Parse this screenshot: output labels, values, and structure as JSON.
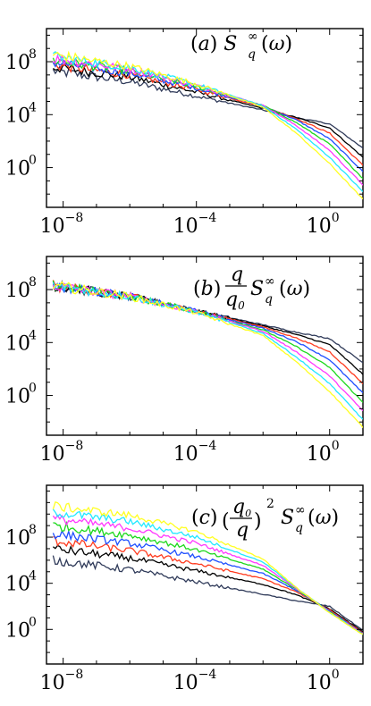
{
  "chart_data": [
    {
      "type": "line",
      "panel_label": "(a)",
      "log_x": true,
      "log_y": true,
      "xlim": [
        3.16e-09,
        10
      ],
      "ylim": [
        0.001,
        31600000000.0
      ],
      "grid": false,
      "x_tick_labels": [
        {
          "base": "10",
          "exp": "−8",
          "value": 1e-08
        },
        {
          "base": "10",
          "exp": "−4",
          "value": 0.0001
        },
        {
          "base": "10",
          "exp": "0",
          "value": 1
        }
      ],
      "y_tick_labels": [
        {
          "base": "10",
          "exp": "0",
          "value": 1
        },
        {
          "base": "10",
          "exp": "4",
          "value": 10000.0
        },
        {
          "base": "10",
          "exp": "8",
          "value": 100000000.0
        }
      ],
      "series": [
        {
          "color": "#2f3a59",
          "x": [
            5e-09,
            1e-06,
            0.0001,
            0.01,
            0.1,
            1,
            10
          ],
          "y": [
            20000000.0,
            3000000.0,
            250000.0,
            22000.0,
            6000.0,
            2000.0,
            30
          ]
        },
        {
          "color": "#000000",
          "x": [
            5e-09,
            1e-06,
            0.0001,
            0.01,
            0.1,
            1,
            10
          ],
          "y": [
            40000000.0,
            7000000.0,
            500000.0,
            30000.0,
            6000.0,
            1000.0,
            6
          ]
        },
        {
          "color": "#ff3b1f",
          "x": [
            5e-09,
            1e-06,
            0.0001,
            0.01,
            0.1,
            1,
            10
          ],
          "y": [
            60000000.0,
            10000000.0,
            800000.0,
            40000.0,
            5000.0,
            400.0,
            1.5
          ]
        },
        {
          "color": "#1e4fff",
          "x": [
            5e-09,
            1e-06,
            0.0001,
            0.01,
            0.1,
            1,
            10
          ],
          "y": [
            90000000.0,
            14000000.0,
            1000000.0,
            45000.0,
            4000.0,
            150.0,
            0.5
          ]
        },
        {
          "color": "#1ed81e",
          "x": [
            5e-09,
            1e-06,
            0.0001,
            0.01,
            0.1,
            1,
            10
          ],
          "y": [
            130000000.0,
            20000000.0,
            1300000.0,
            50000.0,
            2500.0,
            60,
            0.15
          ]
        },
        {
          "color": "#ff39ff",
          "x": [
            5e-09,
            1e-06,
            0.0001,
            0.01,
            0.1,
            1,
            10
          ],
          "y": [
            180000000.0,
            28000000.0,
            1600000.0,
            50000.0,
            1500.0,
            20,
            0.05
          ]
        },
        {
          "color": "#22e8ff",
          "x": [
            5e-09,
            1e-06,
            0.0001,
            0.01,
            0.1,
            1,
            10
          ],
          "y": [
            250000000.0,
            36000000.0,
            1900000.0,
            45000.0,
            800,
            6,
            0.015
          ]
        },
        {
          "color": "#ffff22",
          "x": [
            5e-09,
            1e-06,
            0.0001,
            0.01,
            0.1,
            1,
            10
          ],
          "y": [
            340000000.0,
            45000000.0,
            2100000.0,
            36000.0,
            400,
            2,
            0.004
          ]
        }
      ]
    },
    {
      "type": "line",
      "panel_label": "(b)",
      "log_x": true,
      "log_y": true,
      "xlim": [
        3.16e-09,
        10
      ],
      "ylim": [
        0.001,
        31600000000.0
      ],
      "grid": false,
      "x_tick_labels": [
        {
          "base": "10",
          "exp": "−8",
          "value": 1e-08
        },
        {
          "base": "10",
          "exp": "−4",
          "value": 0.0001
        },
        {
          "base": "10",
          "exp": "0",
          "value": 1
        }
      ],
      "y_tick_labels": [
        {
          "base": "10",
          "exp": "0",
          "value": 1
        },
        {
          "base": "10",
          "exp": "4",
          "value": 10000.0
        },
        {
          "base": "10",
          "exp": "8",
          "value": 100000000.0
        }
      ],
      "series": [
        {
          "color": "#2f3a59",
          "x": [
            5e-09,
            1e-06,
            0.0001,
            0.01,
            0.1,
            1,
            10
          ],
          "y": [
            200000000.0,
            30000000.0,
            2500000.0,
            220000.0,
            60000.0,
            20000.0,
            300
          ]
        },
        {
          "color": "#000000",
          "x": [
            5e-09,
            1e-06,
            0.0001,
            0.01,
            0.1,
            1,
            10
          ],
          "y": [
            200000000.0,
            30000000.0,
            2500000.0,
            180000.0,
            40000.0,
            7000.0,
            40
          ]
        },
        {
          "color": "#ff3b1f",
          "x": [
            5e-09,
            1e-06,
            0.0001,
            0.01,
            0.1,
            1,
            10
          ],
          "y": [
            200000000.0,
            30000000.0,
            2500000.0,
            150000.0,
            22000.0,
            2000.0,
            8
          ]
        },
        {
          "color": "#1e4fff",
          "x": [
            5e-09,
            1e-06,
            0.0001,
            0.01,
            0.1,
            1,
            10
          ],
          "y": [
            200000000.0,
            30000000.0,
            2400000.0,
            120000.0,
            12000.0,
            500,
            1.5
          ]
        },
        {
          "color": "#1ed81e",
          "x": [
            5e-09,
            1e-06,
            0.0001,
            0.01,
            0.1,
            1,
            10
          ],
          "y": [
            200000000.0,
            30000000.0,
            2300000.0,
            90000.0,
            5000.0,
            130,
            0.3
          ]
        },
        {
          "color": "#ff39ff",
          "x": [
            5e-09,
            1e-06,
            0.0001,
            0.01,
            0.1,
            1,
            10
          ],
          "y": [
            200000000.0,
            30000000.0,
            2200000.0,
            70000.0,
            2000.0,
            30,
            0.07
          ]
        },
        {
          "color": "#22e8ff",
          "x": [
            5e-09,
            1e-06,
            0.0001,
            0.01,
            0.1,
            1,
            10
          ],
          "y": [
            200000000.0,
            30000000.0,
            2000000.0,
            50000.0,
            800,
            8,
            0.015
          ]
        },
        {
          "color": "#ffff22",
          "x": [
            5e-09,
            1e-06,
            0.0001,
            0.01,
            0.1,
            1,
            10
          ],
          "y": [
            200000000.0,
            30000000.0,
            1800000.0,
            34000.0,
            350,
            2,
            0.004
          ]
        }
      ]
    },
    {
      "type": "line",
      "panel_label": "(c)",
      "log_x": true,
      "log_y": true,
      "xlim": [
        3.16e-09,
        10
      ],
      "ylim": [
        0.001,
        3160000000000.0
      ],
      "grid": false,
      "x_tick_labels": [
        {
          "base": "10",
          "exp": "−8",
          "value": 1e-08
        },
        {
          "base": "10",
          "exp": "−4",
          "value": 0.0001
        },
        {
          "base": "10",
          "exp": "0",
          "value": 1
        }
      ],
      "y_tick_labels": [
        {
          "base": "10",
          "exp": "0",
          "value": 1
        },
        {
          "base": "10",
          "exp": "4",
          "value": 10000.0
        },
        {
          "base": "10",
          "exp": "8",
          "value": 100000000.0
        }
      ],
      "series": [
        {
          "color": "#2f3a59",
          "x": [
            5e-09,
            1e-06,
            0.0001,
            0.01,
            0.1,
            1,
            10
          ],
          "y": [
            1000000.0,
            150000.0,
            13000.0,
            1100.0,
            300,
            100,
            0.8
          ]
        },
        {
          "color": "#000000",
          "x": [
            5e-09,
            1e-06,
            0.0001,
            0.01,
            0.1,
            1,
            10
          ],
          "y": [
            10000000.0,
            1500000.0,
            120000.0,
            8000.0,
            1000.0,
            60,
            0.6
          ]
        },
        {
          "color": "#ff3b1f",
          "x": [
            5e-09,
            1e-06,
            0.0001,
            0.01,
            0.1,
            1,
            10
          ],
          "y": [
            50000000.0,
            7000000.0,
            500000.0,
            25000.0,
            1800.0,
            50,
            0.5
          ]
        },
        {
          "color": "#1e4fff",
          "x": [
            5e-09,
            1e-06,
            0.0001,
            0.01,
            0.1,
            1,
            10
          ],
          "y": [
            200000000.0,
            30000000.0,
            2000000.0,
            70000.0,
            2500.0,
            40,
            0.45
          ]
        },
        {
          "color": "#1ed81e",
          "x": [
            5e-09,
            1e-06,
            0.0001,
            0.01,
            0.1,
            1,
            10
          ],
          "y": [
            1000000000.0,
            150000000.0,
            8000000.0,
            170000.0,
            3000.0,
            35,
            0.4
          ]
        },
        {
          "color": "#ff39ff",
          "x": [
            5e-09,
            1e-06,
            0.0001,
            0.01,
            0.1,
            1,
            10
          ],
          "y": [
            4000000000.0,
            600000000.0,
            30000000.0,
            360000.0,
            3600.0,
            32,
            0.38
          ]
        },
        {
          "color": "#22e8ff",
          "x": [
            5e-09,
            1e-06,
            0.0001,
            0.01,
            0.1,
            1,
            10
          ],
          "y": [
            15000000000.0,
            2300000000.0,
            100000000.0,
            700000.0,
            4000.0,
            30,
            0.36
          ]
        },
        {
          "color": "#ffff22",
          "x": [
            5e-09,
            1e-06,
            0.0001,
            0.01,
            0.1,
            1,
            10
          ],
          "y": [
            50000000000.0,
            8000000000.0,
            300000000.0,
            1300000.0,
            4200.0,
            28,
            0.35
          ]
        }
      ]
    }
  ]
}
